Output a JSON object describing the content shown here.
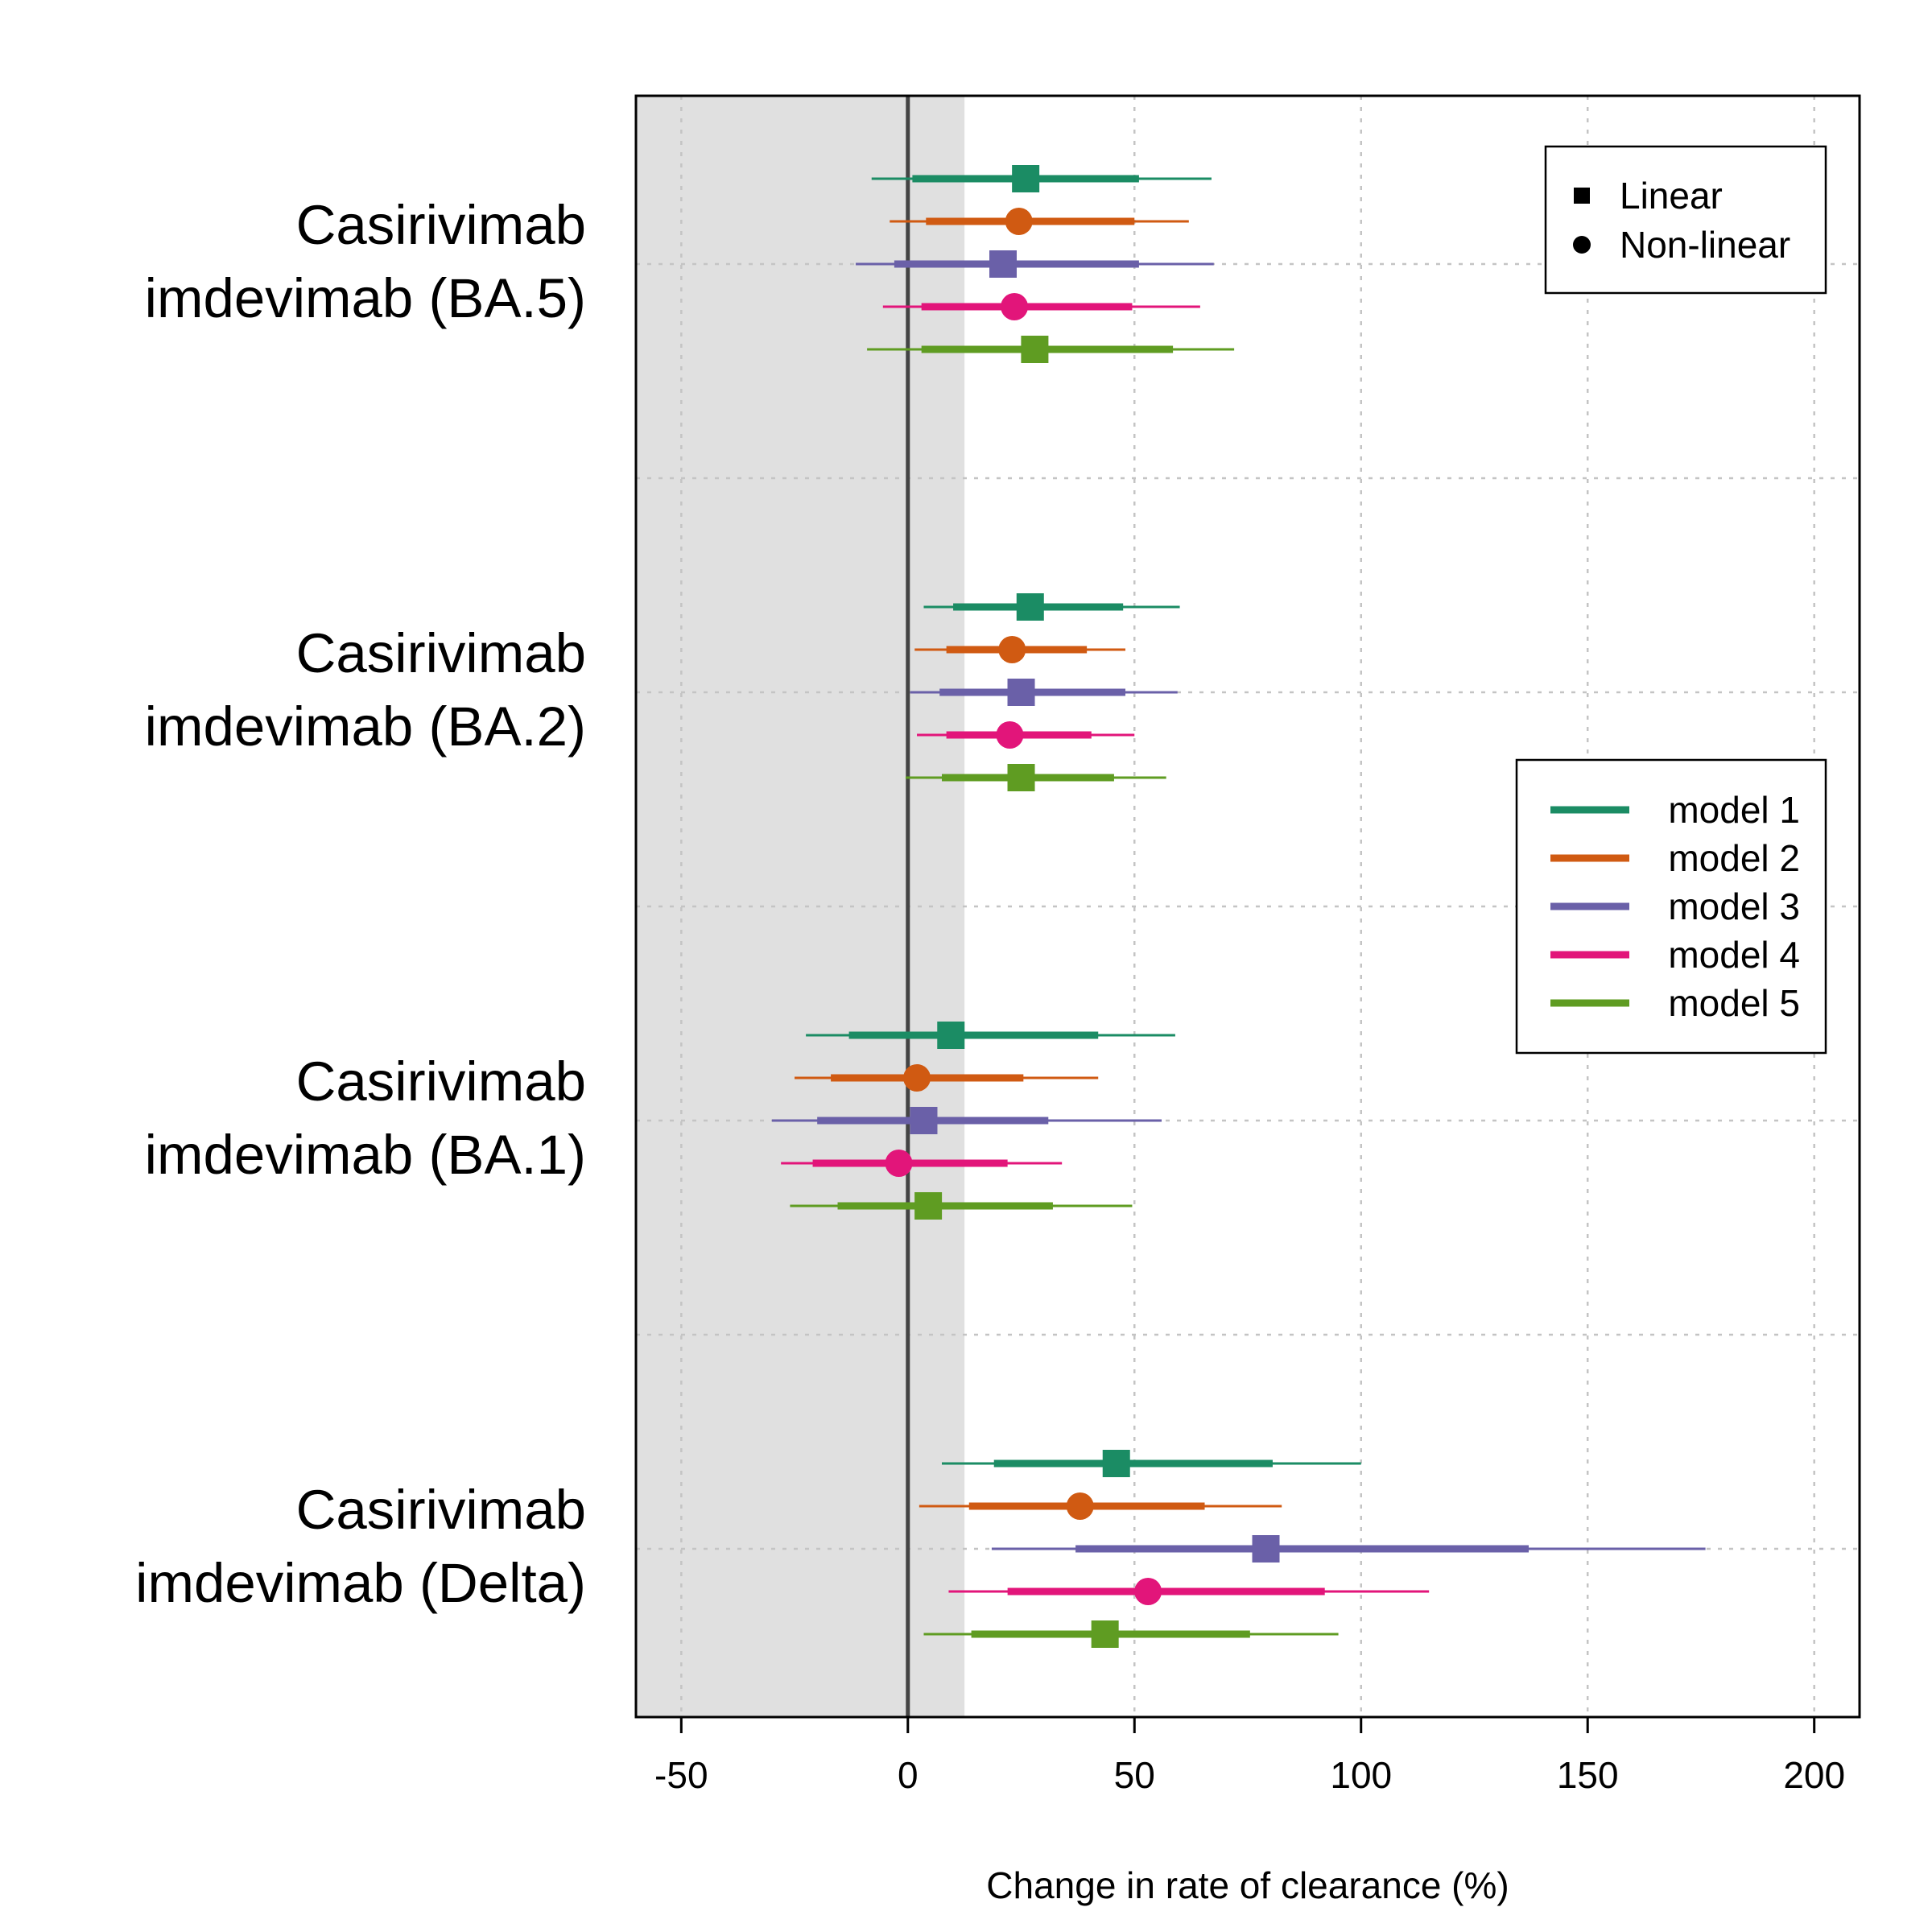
{
  "chart_data": {
    "type": "forest",
    "xlabel": "Change in rate of clearance (%)",
    "xlim": [
      -60,
      210
    ],
    "x_ticks": [
      -50,
      0,
      50,
      100,
      150,
      200
    ],
    "x_tick_labels": [
      "-50",
      "0",
      "50",
      "100",
      "150",
      "200"
    ],
    "grid": true,
    "reference_line_x": 0,
    "shaded_region": [
      -60,
      12.5
    ],
    "groups": [
      {
        "name_line1": "Casirivimab",
        "name_line2": "imdevimab (BA.5)",
        "estimates": [
          {
            "model": "model 1",
            "shape": "Linear",
            "est": 26,
            "inner": [
              1,
              51
            ],
            "outer": [
              -8,
              67
            ]
          },
          {
            "model": "model 2",
            "shape": "Non-linear",
            "est": 24.5,
            "inner": [
              4,
              50
            ],
            "outer": [
              -4,
              62
            ]
          },
          {
            "model": "model 3",
            "shape": "Linear",
            "est": 21,
            "inner": [
              -3,
              51
            ],
            "outer": [
              -11.5,
              67.5
            ]
          },
          {
            "model": "model 4",
            "shape": "Non-linear",
            "est": 23.5,
            "inner": [
              3,
              49.5
            ],
            "outer": [
              -5.5,
              64.5
            ]
          },
          {
            "model": "model 5",
            "shape": "Linear",
            "est": 28,
            "inner": [
              3,
              58.5
            ],
            "outer": [
              -9,
              72
            ]
          }
        ]
      },
      {
        "name_line1": "Casirivimab",
        "name_line2": "imdevimab (BA.2)",
        "estimates": [
          {
            "model": "model 1",
            "shape": "Linear",
            "est": 27,
            "inner": [
              10,
              47.5
            ],
            "outer": [
              3.5,
              60
            ]
          },
          {
            "model": "model 2",
            "shape": "Non-linear",
            "est": 23,
            "inner": [
              8.5,
              39.5
            ],
            "outer": [
              1.5,
              48
            ]
          },
          {
            "model": "model 3",
            "shape": "Linear",
            "est": 25,
            "inner": [
              7,
              48
            ],
            "outer": [
              0.5,
              59.5
            ]
          },
          {
            "model": "model 4",
            "shape": "Non-linear",
            "est": 22.5,
            "inner": [
              8.5,
              40.5
            ],
            "outer": [
              2,
              50
            ]
          },
          {
            "model": "model 5",
            "shape": "Linear",
            "est": 25,
            "inner": [
              7.5,
              45.5
            ],
            "outer": [
              -0.5,
              57
            ]
          }
        ]
      },
      {
        "name_line1": "Casirivimab",
        "name_line2": "imdevimab (BA.1)",
        "estimates": [
          {
            "model": "model 1",
            "shape": "Linear",
            "est": 9.5,
            "inner": [
              -13,
              42
            ],
            "outer": [
              -22.5,
              59
            ]
          },
          {
            "model": "model 2",
            "shape": "Non-linear",
            "est": 2,
            "inner": [
              -17,
              25.5
            ],
            "outer": [
              -25,
              42
            ]
          },
          {
            "model": "model 3",
            "shape": "Linear",
            "est": 3.5,
            "inner": [
              -20,
              31
            ],
            "outer": [
              -30,
              56
            ]
          },
          {
            "model": "model 4",
            "shape": "Non-linear",
            "est": -2,
            "inner": [
              -21,
              22
            ],
            "outer": [
              -28,
              34
            ]
          },
          {
            "model": "model 5",
            "shape": "Linear",
            "est": 4.5,
            "inner": [
              -15.5,
              32
            ],
            "outer": [
              -26,
              49.5
            ]
          }
        ]
      },
      {
        "name_line1": "Casirivimab",
        "name_line2": "imdevimab (Delta)",
        "estimates": [
          {
            "model": "model 1",
            "shape": "Linear",
            "est": 46,
            "inner": [
              19,
              80.5
            ],
            "outer": [
              7.5,
              100
            ]
          },
          {
            "model": "model 2",
            "shape": "Non-linear",
            "est": 38,
            "inner": [
              13.5,
              65.5
            ],
            "outer": [
              2.5,
              82.5
            ]
          },
          {
            "model": "model 3",
            "shape": "Linear",
            "est": 79,
            "inner": [
              37,
              137
            ],
            "outer": [
              18.5,
              176
            ]
          },
          {
            "model": "model 4",
            "shape": "Non-linear",
            "est": 53,
            "inner": [
              22,
              92
            ],
            "outer": [
              9,
              115
            ]
          },
          {
            "model": "model 5",
            "shape": "Linear",
            "est": 43.5,
            "inner": [
              14,
              75.5
            ],
            "outer": [
              3.5,
              95
            ]
          }
        ]
      }
    ],
    "series": [
      {
        "name": "model 1",
        "color": "#1b8c64"
      },
      {
        "name": "model 2",
        "color": "#d05a12"
      },
      {
        "name": "model 3",
        "color": "#6a60a8"
      },
      {
        "name": "model 4",
        "color": "#e2157a"
      },
      {
        "name": "model 5",
        "color": "#5f9c22"
      }
    ],
    "shape_legend": [
      {
        "label": "Linear",
        "symbol": "square"
      },
      {
        "label": "Non-linear",
        "symbol": "circle"
      }
    ],
    "shape_legend_position": "top-right",
    "model_legend_position": "right"
  }
}
